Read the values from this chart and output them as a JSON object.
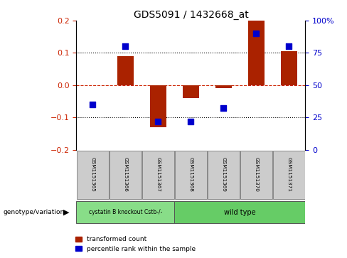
{
  "title": "GDS5091 / 1432668_at",
  "categories": [
    "GSM1151365",
    "GSM1151366",
    "GSM1151367",
    "GSM1151368",
    "GSM1151369",
    "GSM1151370",
    "GSM1151371"
  ],
  "red_bars": [
    0.0,
    0.09,
    -0.13,
    -0.04,
    -0.01,
    0.2,
    0.105
  ],
  "blue_dots_pct": [
    35,
    80,
    22,
    22,
    32,
    90,
    80
  ],
  "ylim_left": [
    -0.2,
    0.2
  ],
  "ylim_right": [
    0,
    100
  ],
  "yticks_left": [
    -0.2,
    -0.1,
    0.0,
    0.1,
    0.2
  ],
  "yticks_right": [
    0,
    25,
    50,
    75,
    100
  ],
  "bar_color": "#aa2200",
  "dot_color": "#0000cc",
  "bar_width": 0.5,
  "dot_size": 40,
  "group1_label": "cystatin B knockout Cstb-/-",
  "group2_label": "wild type",
  "group1_indices": [
    0,
    1,
    2
  ],
  "group2_indices": [
    3,
    4,
    5,
    6
  ],
  "group1_color": "#88dd88",
  "group2_color": "#66cc66",
  "genotype_label": "genotype/variation",
  "legend_red": "transformed count",
  "legend_blue": "percentile rank within the sample",
  "bg_label_area": "#cccccc",
  "ylabel_left_color": "#cc2200",
  "ylabel_right_color": "#0000cc"
}
